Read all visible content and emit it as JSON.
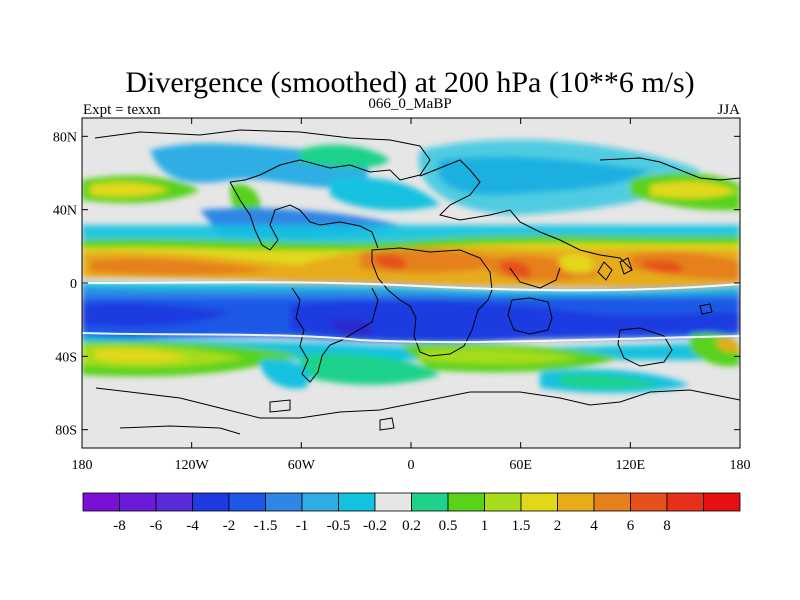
{
  "chart_data": {
    "type": "heatmap",
    "title": "Divergence (smoothed) at 200 hPa (10**6 m/s)",
    "left_subtitle": "Expt = texxn",
    "center_subtitle": "066_0_MaBP",
    "right_subtitle": "JJA",
    "x_ticks": [
      {
        "lon": -180,
        "label": "180"
      },
      {
        "lon": -120,
        "label": "120W"
      },
      {
        "lon": -60,
        "label": "60W"
      },
      {
        "lon": 0,
        "label": "0"
      },
      {
        "lon": 60,
        "label": "60E"
      },
      {
        "lon": 120,
        "label": "120E"
      },
      {
        "lon": 180,
        "label": "180"
      }
    ],
    "y_ticks": [
      {
        "lat": 80,
        "label": "80N"
      },
      {
        "lat": 40,
        "label": "40N"
      },
      {
        "lat": 0,
        "label": "0"
      },
      {
        "lat": -40,
        "label": "40S"
      },
      {
        "lat": -80,
        "label": "80S"
      }
    ],
    "xlim": [
      -180,
      180
    ],
    "ylim": [
      -90,
      90
    ],
    "colorbar_colors": [
      "#7a10d8",
      "#6a1ad8",
      "#5a2ad8",
      "#1f3ae0",
      "#1f58e6",
      "#2f86e4",
      "#2faee4",
      "#12c2e0",
      "#e6e6e6",
      "#1ed28a",
      "#58d21a",
      "#a6dc1c",
      "#e2d81a",
      "#e6ac1a",
      "#e6801a",
      "#e6501a",
      "#e6301a",
      "#e61010"
    ],
    "colorbar_labels": [
      "-8",
      "-6",
      "-4",
      "-2",
      "-1.5",
      "-1",
      "-0.5",
      "-0.2",
      "0.2",
      "0.5",
      "1",
      "1.5",
      "2",
      "4",
      "6",
      "8"
    ],
    "background_color": "#e6e6e6",
    "field_regions": [
      {
        "band": "10S-30S",
        "lon": [
          -180,
          180
        ],
        "level": -2,
        "color": "#1f3ae0"
      },
      {
        "band": "0-20N",
        "lon": [
          -180,
          180
        ],
        "level": 4,
        "color": "#e6801a"
      },
      {
        "band": "30S-50S",
        "lon": [
          -180,
          180
        ],
        "level": 1.5,
        "color": "#a6dc1c"
      },
      {
        "band": "40N-70N",
        "lon": [
          -180,
          180
        ],
        "level": -1,
        "color": "#2f86e4"
      }
    ]
  }
}
